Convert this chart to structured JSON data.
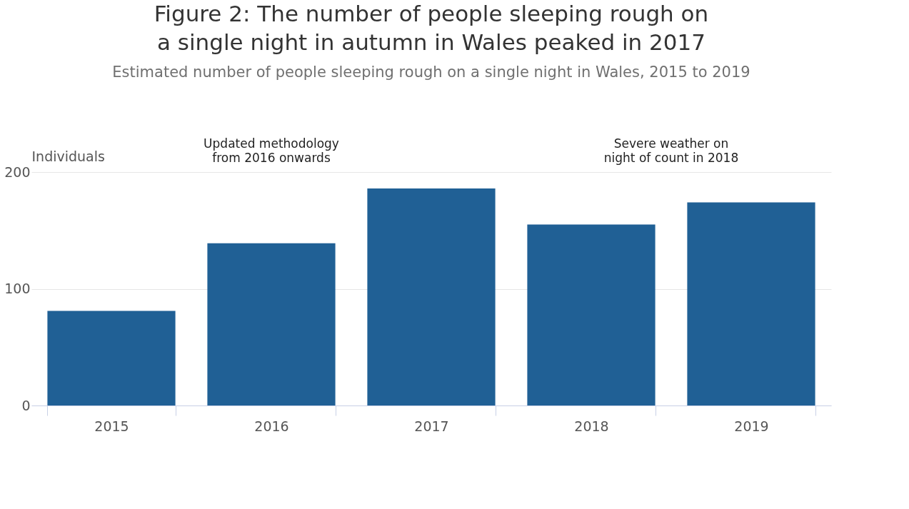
{
  "chart_data": {
    "type": "bar",
    "title": "Figure 2: The number of people sleeping rough on a single night in autumn in Wales peaked in 2017",
    "subtitle": "Estimated number of people sleeping rough on a single night in Wales, 2015 to 2019",
    "ylabel": "Individuals",
    "categories": [
      "2015",
      "2016",
      "2017",
      "2018",
      "2019"
    ],
    "values": [
      81,
      139,
      186,
      155,
      174
    ],
    "color": "#206095",
    "ylim": [
      0,
      200
    ],
    "yticks": [
      0,
      100,
      200
    ],
    "grid": "y",
    "annotations": [
      "Updated methodology\nfrom 2016 onwards",
      "Severe weather on\nnight of count in 2018"
    ]
  }
}
